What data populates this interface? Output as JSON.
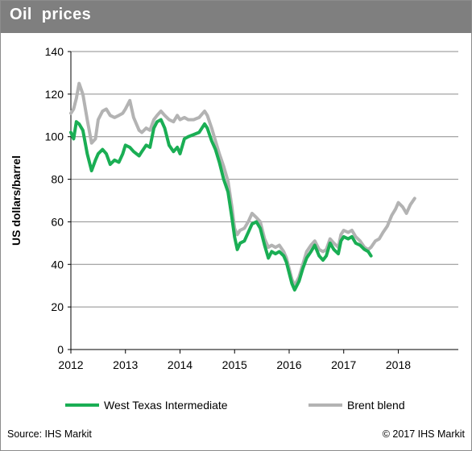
{
  "header": {
    "title": "Oil  prices"
  },
  "footer": {
    "source": "Source: IHS Markit",
    "copyright": "© 2017 IHS Markit"
  },
  "colors": {
    "wti": "#1aae54",
    "brent": "#b3b3b3",
    "grid": "#8c8c8c",
    "title_bar": "#7f7f7f"
  },
  "chart_data": {
    "type": "line",
    "title": "Oil  prices",
    "xlabel": "",
    "ylabel": "US dollars/barrel",
    "xlim": [
      2012,
      2019.1
    ],
    "ylim": [
      0,
      140
    ],
    "yticks": [
      0,
      20,
      40,
      60,
      80,
      100,
      120,
      140
    ],
    "xticks": [
      2012,
      2013,
      2014,
      2015,
      2016,
      2017,
      2018
    ],
    "grid": "horizontal",
    "legend": "bottom",
    "series": [
      {
        "name": "West Texas Intermediate",
        "x": [
          2012.0,
          2012.05,
          2012.1,
          2012.15,
          2012.22,
          2012.3,
          2012.38,
          2012.45,
          2012.5,
          2012.58,
          2012.65,
          2012.72,
          2012.8,
          2012.88,
          2012.95,
          2013.0,
          2013.08,
          2013.15,
          2013.25,
          2013.3,
          2013.38,
          2013.45,
          2013.52,
          2013.58,
          2013.65,
          2013.72,
          2013.8,
          2013.88,
          2013.95,
          2014.0,
          2014.08,
          2014.15,
          2014.25,
          2014.35,
          2014.45,
          2014.5,
          2014.58,
          2014.65,
          2014.72,
          2014.8,
          2014.88,
          2014.95,
          2015.0,
          2015.05,
          2015.1,
          2015.18,
          2015.25,
          2015.32,
          2015.4,
          2015.47,
          2015.55,
          2015.62,
          2015.68,
          2015.75,
          2015.82,
          2015.9,
          2015.95,
          2016.0,
          2016.05,
          2016.1,
          2016.18,
          2016.25,
          2016.32,
          2016.4,
          2016.47,
          2016.55,
          2016.62,
          2016.68,
          2016.75,
          2016.82,
          2016.9,
          2016.95,
          2017.0,
          2017.08,
          2017.15,
          2017.22,
          2017.3,
          2017.38,
          2017.45,
          2017.5
        ],
        "values": [
          102,
          99,
          107,
          106,
          103,
          92,
          84,
          89,
          92,
          94,
          92,
          87,
          89,
          88,
          92,
          96,
          95,
          93,
          91,
          93,
          96,
          95,
          104,
          107,
          108,
          104,
          96,
          93,
          95,
          92,
          99,
          100,
          101,
          102,
          106,
          104,
          98,
          94,
          88,
          80,
          74,
          62,
          53,
          47,
          50,
          51,
          55,
          59,
          60,
          57,
          49,
          43,
          46,
          45,
          46,
          44,
          41,
          36,
          31,
          28,
          32,
          38,
          43,
          46,
          49,
          44,
          42,
          44,
          50,
          47,
          45,
          51,
          53,
          52,
          53,
          50,
          49,
          47,
          46,
          44
        ]
      },
      {
        "name": "Brent blend",
        "x": [
          2012.0,
          2012.05,
          2012.1,
          2012.15,
          2012.22,
          2012.3,
          2012.38,
          2012.45,
          2012.5,
          2012.58,
          2012.65,
          2012.72,
          2012.8,
          2012.88,
          2012.95,
          2013.0,
          2013.08,
          2013.15,
          2013.25,
          2013.3,
          2013.38,
          2013.45,
          2013.52,
          2013.58,
          2013.65,
          2013.72,
          2013.8,
          2013.88,
          2013.95,
          2014.0,
          2014.08,
          2014.15,
          2014.25,
          2014.35,
          2014.45,
          2014.5,
          2014.58,
          2014.65,
          2014.72,
          2014.8,
          2014.88,
          2014.95,
          2015.0,
          2015.05,
          2015.1,
          2015.18,
          2015.25,
          2015.32,
          2015.4,
          2015.47,
          2015.55,
          2015.62,
          2015.68,
          2015.75,
          2015.82,
          2015.9,
          2015.95,
          2016.0,
          2016.05,
          2016.1,
          2016.18,
          2016.25,
          2016.32,
          2016.4,
          2016.47,
          2016.55,
          2016.62,
          2016.68,
          2016.75,
          2016.82,
          2016.9,
          2016.95,
          2017.0,
          2017.08,
          2017.15,
          2017.22,
          2017.3,
          2017.38,
          2017.45,
          2017.5,
          2017.58,
          2017.65,
          2017.72,
          2017.8,
          2017.88,
          2017.95,
          2018.0,
          2018.08,
          2018.15,
          2018.22,
          2018.3
        ],
        "values": [
          111,
          113,
          118,
          125,
          120,
          108,
          97,
          99,
          108,
          112,
          113,
          110,
          109,
          110,
          111,
          113,
          117,
          109,
          103,
          102,
          104,
          103,
          108,
          110,
          112,
          110,
          108,
          107,
          110,
          108,
          109,
          108,
          108,
          109,
          112,
          110,
          104,
          98,
          92,
          86,
          79,
          67,
          57,
          54,
          56,
          57,
          60,
          64,
          62,
          60,
          52,
          48,
          49,
          48,
          49,
          46,
          43,
          38,
          33,
          30,
          34,
          40,
          46,
          49,
          51,
          47,
          46,
          47,
          52,
          50,
          48,
          54,
          56,
          55,
          56,
          53,
          51,
          48,
          47,
          48,
          51,
          52,
          55,
          58,
          63,
          66,
          69,
          67,
          64,
          68,
          71
        ]
      }
    ]
  }
}
